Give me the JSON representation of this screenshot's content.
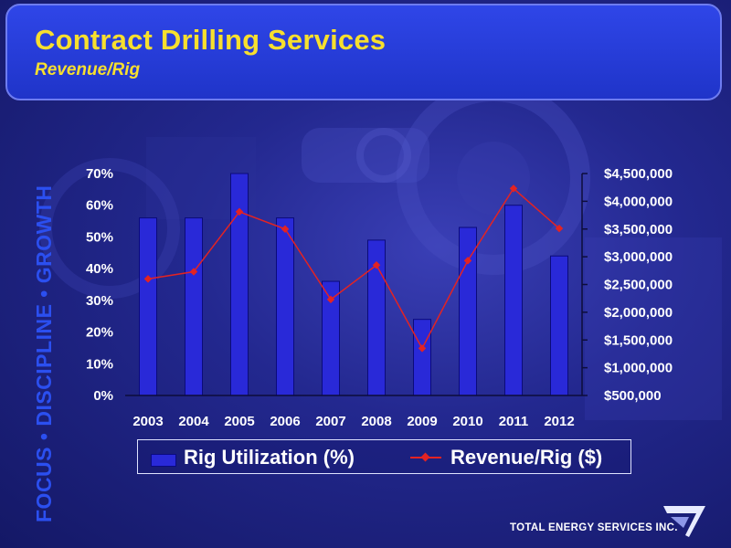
{
  "header": {
    "title": "Contract Drilling Services",
    "subtitle": "Revenue/Rig"
  },
  "side_tagline": "FOCUS • DISCIPLINE • GROWTH",
  "company": "TOTAL ENERGY SERVICES INC.",
  "legend": {
    "bar_label": "Rig Utilization (%)",
    "line_label": "Revenue/Rig ($)"
  },
  "colors": {
    "bar": "#2929d8",
    "line": "#e32323",
    "title": "#f7df2e",
    "tagline": "#2b4ff0"
  },
  "chart_data": {
    "type": "bar",
    "categories": [
      "2003",
      "2004",
      "2005",
      "2006",
      "2007",
      "2008",
      "2009",
      "2010",
      "2011",
      "2012"
    ],
    "series": [
      {
        "name": "Rig Utilization (%)",
        "type": "bar",
        "axis": "left",
        "values": [
          56,
          56,
          70,
          56,
          36,
          49,
          24,
          53,
          60,
          44
        ]
      },
      {
        "name": "Revenue/Rig ($)",
        "type": "line",
        "axis": "right",
        "values": [
          2600000,
          2730000,
          3810000,
          3500000,
          2230000,
          2850000,
          1350000,
          2930000,
          4230000,
          3510000
        ]
      }
    ],
    "y_left": {
      "range": [
        0,
        70
      ],
      "ticks": [
        0,
        10,
        20,
        30,
        40,
        50,
        60,
        70
      ],
      "tick_labels": [
        "0%",
        "10%",
        "20%",
        "30%",
        "40%",
        "50%",
        "60%",
        "70%"
      ]
    },
    "y_right": {
      "range": [
        500000,
        4500000
      ],
      "ticks": [
        500000,
        1000000,
        1500000,
        2000000,
        2500000,
        3000000,
        3500000,
        4000000,
        4500000
      ],
      "tick_labels": [
        "$500,000",
        "$1,000,000",
        "$1,500,000",
        "$2,000,000",
        "$2,500,000",
        "$3,000,000",
        "$3,500,000",
        "$4,000,000",
        "$4,500,000"
      ]
    },
    "grid": false,
    "legend_position": "bottom"
  }
}
